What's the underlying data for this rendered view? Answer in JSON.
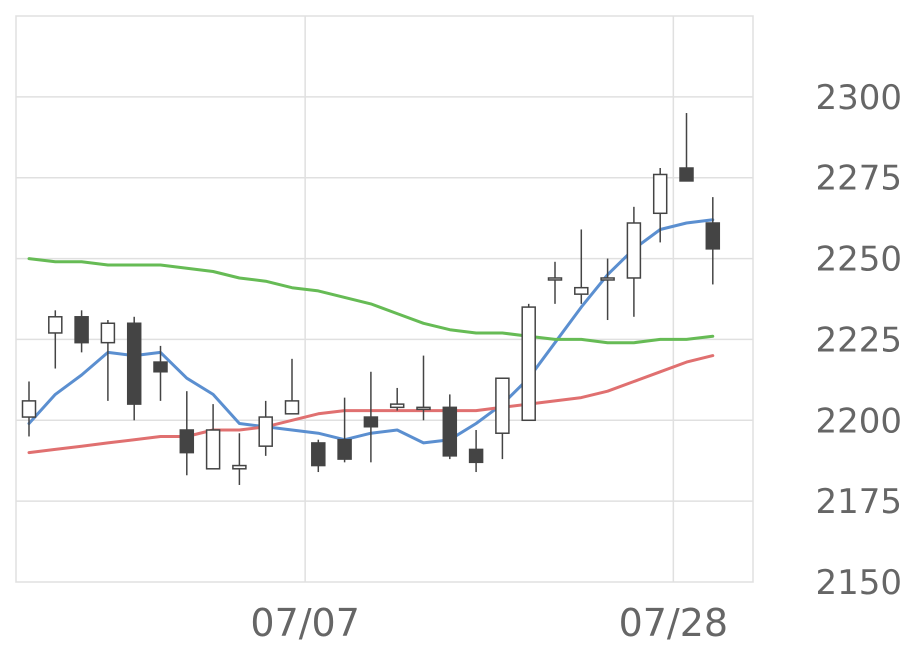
{
  "chart_data": {
    "type": "candlestick",
    "title": "",
    "xlabel": "",
    "ylabel": "",
    "ylim": [
      2150,
      2325
    ],
    "yticks": [
      2150,
      2175,
      2200,
      2225,
      2250,
      2275,
      2300
    ],
    "ytick_labels": [
      "2150",
      "2175",
      "2200",
      "2225",
      "2250",
      "2275",
      "2300"
    ],
    "xtick_labels": [
      {
        "label": "07/07",
        "index": 10.5
      },
      {
        "label": "07/28",
        "index": 24.5
      }
    ],
    "grid": true,
    "legend": "none",
    "colors": {
      "up_body": "#ffffff",
      "down_body": "#444444",
      "wick": "#444444",
      "ma_short": "#5b8fd0",
      "ma_mid": "#e07070",
      "ma_long": "#66bb55",
      "grid": "#e0e0e0"
    },
    "candles": [
      {
        "o": 2201,
        "h": 2212,
        "l": 2195,
        "c": 2206
      },
      {
        "o": 2227,
        "h": 2234,
        "l": 2216,
        "c": 2232
      },
      {
        "o": 2232,
        "h": 2234,
        "l": 2221,
        "c": 2224
      },
      {
        "o": 2224,
        "h": 2231,
        "l": 2206,
        "c": 2230
      },
      {
        "o": 2230,
        "h": 2232,
        "l": 2200,
        "c": 2205
      },
      {
        "o": 2218,
        "h": 2223,
        "l": 2206,
        "c": 2215
      },
      {
        "o": 2197,
        "h": 2209,
        "l": 2183,
        "c": 2190
      },
      {
        "o": 2185,
        "h": 2205,
        "l": 2185,
        "c": 2197
      },
      {
        "o": 2185,
        "h": 2196,
        "l": 2180,
        "c": 2186
      },
      {
        "o": 2192,
        "h": 2206,
        "l": 2189,
        "c": 2201
      },
      {
        "o": 2202,
        "h": 2219,
        "l": 2202,
        "c": 2206
      },
      {
        "o": 2193,
        "h": 2194,
        "l": 2184,
        "c": 2186
      },
      {
        "o": 2194,
        "h": 2207,
        "l": 2187,
        "c": 2188
      },
      {
        "o": 2201,
        "h": 2215,
        "l": 2187,
        "c": 2198
      },
      {
        "o": 2204,
        "h": 2210,
        "l": 2203,
        "c": 2205
      },
      {
        "o": 2204,
        "h": 2220,
        "l": 2200,
        "c": 2204
      },
      {
        "o": 2204,
        "h": 2208,
        "l": 2188,
        "c": 2189
      },
      {
        "o": 2191,
        "h": 2197,
        "l": 2184,
        "c": 2187
      },
      {
        "o": 2196,
        "h": 2213,
        "l": 2188,
        "c": 2213
      },
      {
        "o": 2200,
        "h": 2236,
        "l": 2200,
        "c": 2235
      },
      {
        "o": 2244,
        "h": 2249,
        "l": 2236,
        "c": 2244
      },
      {
        "o": 2239,
        "h": 2259,
        "l": 2236,
        "c": 2241
      },
      {
        "o": 2244,
        "h": 2250,
        "l": 2231,
        "c": 2244
      },
      {
        "o": 2244,
        "h": 2266,
        "l": 2232,
        "c": 2261
      },
      {
        "o": 2264,
        "h": 2278,
        "l": 2255,
        "c": 2276
      },
      {
        "o": 2278,
        "h": 2295,
        "l": 2274,
        "c": 2274
      },
      {
        "o": 2261,
        "h": 2269,
        "l": 2242,
        "c": 2253
      }
    ],
    "series": [
      {
        "key": "ma_short",
        "values": [
          2199,
          2208,
          2214,
          2221,
          2220,
          2221,
          2213,
          2208,
          2199,
          2198,
          2197,
          2196,
          2194,
          2196,
          2197,
          2193,
          2194,
          2199,
          2205,
          2213,
          2224,
          2235,
          2245,
          2253,
          2259,
          2261,
          2262
        ]
      },
      {
        "key": "ma_mid",
        "values": [
          2190,
          2191,
          2192,
          2193,
          2194,
          2195,
          2195,
          2197,
          2197,
          2198,
          2200,
          2202,
          2203,
          2203,
          2203,
          2203,
          2203,
          2203,
          2204,
          2205,
          2206,
          2207,
          2209,
          2212,
          2215,
          2218,
          2220
        ]
      },
      {
        "key": "ma_long",
        "values": [
          2250,
          2249,
          2249,
          2248,
          2248,
          2248,
          2247,
          2246,
          2244,
          2243,
          2241,
          2240,
          2238,
          2236,
          2233,
          2230,
          2228,
          2227,
          2227,
          2226,
          2225,
          2225,
          2224,
          2224,
          2225,
          2225,
          2226
        ]
      }
    ]
  }
}
